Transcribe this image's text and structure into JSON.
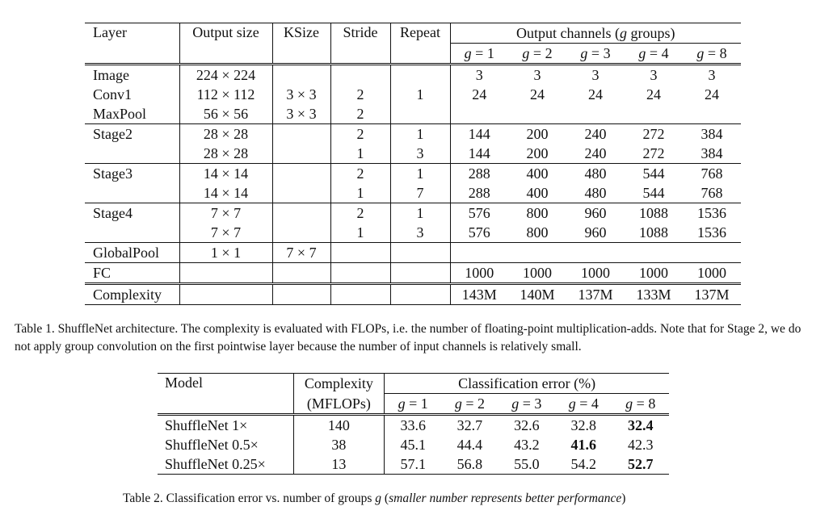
{
  "table1": {
    "headers": {
      "layer": "Layer",
      "output_size": "Output size",
      "ksize": "KSize",
      "stride": "Stride",
      "repeat": "Repeat",
      "output_channels_prefix": "Output channels (",
      "output_channels_var": "g",
      "output_channels_suffix": " groups)",
      "g_values": [
        "1",
        "2",
        "3",
        "4",
        "8"
      ]
    },
    "rows": [
      {
        "layer": "Image",
        "output_size": "224 × 224",
        "ksize": "",
        "stride": "",
        "repeat": "",
        "channels": [
          "3",
          "3",
          "3",
          "3",
          "3"
        ]
      },
      {
        "layer": "Conv1",
        "output_size": "112 × 112",
        "ksize": "3 × 3",
        "stride": "2",
        "repeat": "1",
        "channels": [
          "24",
          "24",
          "24",
          "24",
          "24"
        ]
      },
      {
        "layer": "MaxPool",
        "output_size": "56 × 56",
        "ksize": "3 × 3",
        "stride": "2",
        "repeat": "",
        "channels": [
          "",
          "",
          "",
          "",
          ""
        ]
      },
      {
        "layer": "Stage2",
        "output_size": "28 × 28",
        "ksize": "",
        "stride": "2",
        "repeat": "1",
        "channels": [
          "144",
          "200",
          "240",
          "272",
          "384"
        ]
      },
      {
        "layer": "",
        "output_size": "28 × 28",
        "ksize": "",
        "stride": "1",
        "repeat": "3",
        "channels": [
          "144",
          "200",
          "240",
          "272",
          "384"
        ]
      },
      {
        "layer": "Stage3",
        "output_size": "14 × 14",
        "ksize": "",
        "stride": "2",
        "repeat": "1",
        "channels": [
          "288",
          "400",
          "480",
          "544",
          "768"
        ]
      },
      {
        "layer": "",
        "output_size": "14 × 14",
        "ksize": "",
        "stride": "1",
        "repeat": "7",
        "channels": [
          "288",
          "400",
          "480",
          "544",
          "768"
        ]
      },
      {
        "layer": "Stage4",
        "output_size": "7 × 7",
        "ksize": "",
        "stride": "2",
        "repeat": "1",
        "channels": [
          "576",
          "800",
          "960",
          "1088",
          "1536"
        ]
      },
      {
        "layer": "",
        "output_size": "7 × 7",
        "ksize": "",
        "stride": "1",
        "repeat": "3",
        "channels": [
          "576",
          "800",
          "960",
          "1088",
          "1536"
        ]
      },
      {
        "layer": "GlobalPool",
        "output_size": "1 × 1",
        "ksize": "7 × 7",
        "stride": "",
        "repeat": "",
        "channels": [
          "",
          "",
          "",
          "",
          ""
        ]
      },
      {
        "layer": "FC",
        "output_size": "",
        "ksize": "",
        "stride": "",
        "repeat": "",
        "channels": [
          "1000",
          "1000",
          "1000",
          "1000",
          "1000"
        ]
      }
    ],
    "complexity": {
      "label": "Complexity",
      "values": [
        "143M",
        "140M",
        "137M",
        "133M",
        "137M"
      ]
    },
    "caption": "Table 1. ShuffleNet architecture. The complexity is evaluated with FLOPs, i.e. the number of floating-point multiplication-adds. Note that for Stage 2, we do not apply group convolution on the first pointwise layer because the number of input channels is relatively small."
  },
  "table2": {
    "headers": {
      "model": "Model",
      "complexity_line1": "Complexity",
      "complexity_line2": "(MFLOPs)",
      "error": "Classification error (%)",
      "g_var": "g",
      "g_values": [
        "1",
        "2",
        "3",
        "4",
        "8"
      ]
    },
    "rows": [
      {
        "model": "ShuffleNet 1×",
        "complexity": "140",
        "errors": [
          "33.6",
          "32.7",
          "32.6",
          "32.8",
          "32.4"
        ],
        "best_index": 4
      },
      {
        "model": "ShuffleNet 0.5×",
        "complexity": "38",
        "errors": [
          "45.1",
          "44.4",
          "43.2",
          "41.6",
          "42.3"
        ],
        "best_index": 3
      },
      {
        "model": "ShuffleNet 0.25×",
        "complexity": "13",
        "errors": [
          "57.1",
          "56.8",
          "55.0",
          "54.2",
          "52.7"
        ],
        "best_index": 4
      }
    ],
    "caption_prefix": "Table 2. Classification error vs. number of groups ",
    "caption_var": "g",
    "caption_italic": "smaller number represents better performance"
  }
}
